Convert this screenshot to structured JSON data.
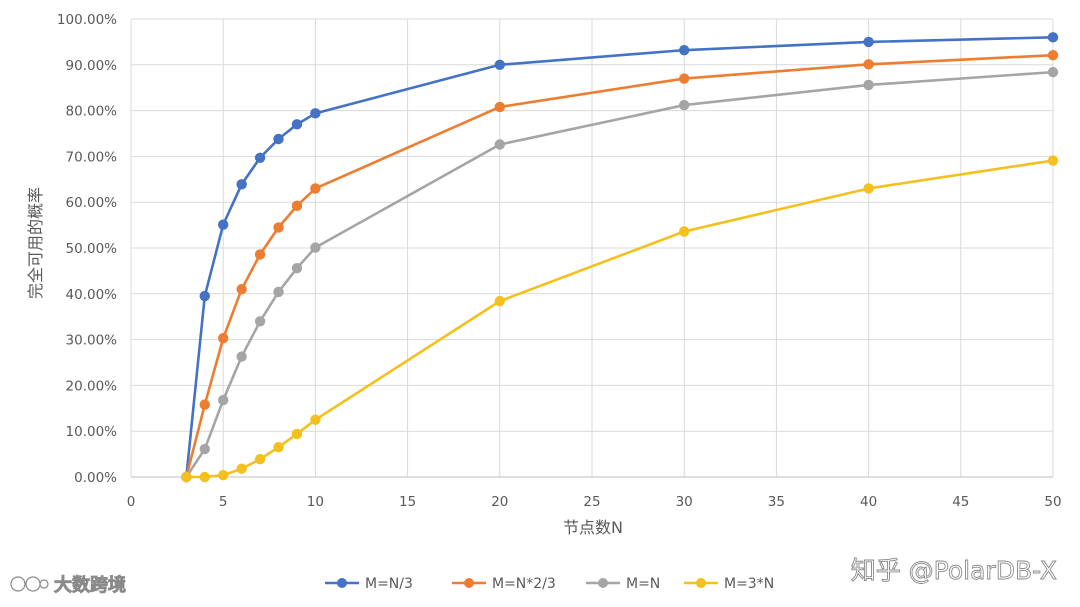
{
  "chart_data": {
    "type": "line",
    "title": "",
    "xlabel": "节点数N",
    "ylabel": "完全可用的概率",
    "xlim": [
      0,
      50
    ],
    "ylim": [
      0,
      100
    ],
    "x_ticks": [
      "0",
      "5",
      "10",
      "15",
      "20",
      "25",
      "30",
      "35",
      "40",
      "45",
      "50"
    ],
    "y_ticks": [
      "0.00%",
      "10.00%",
      "20.00%",
      "30.00%",
      "40.00%",
      "50.00%",
      "60.00%",
      "70.00%",
      "80.00%",
      "90.00%",
      "100.00%"
    ],
    "grid": true,
    "legend_position": "bottom",
    "series": [
      {
        "name": "M=N/3",
        "color": "#4472C4",
        "x": [
          3,
          4,
          5,
          6,
          7,
          8,
          9,
          10,
          20,
          30,
          40,
          50
        ],
        "y": [
          0,
          39.5,
          55.1,
          63.9,
          69.7,
          73.8,
          77.0,
          79.4,
          90.0,
          93.2,
          95.0,
          96.0
        ]
      },
      {
        "name": "M=N*2/3",
        "color": "#ED7D31",
        "x": [
          3,
          4,
          5,
          6,
          7,
          8,
          9,
          10,
          20,
          30,
          40,
          50
        ],
        "y": [
          0,
          15.8,
          30.3,
          41.0,
          48.6,
          54.5,
          59.2,
          63.0,
          80.8,
          87.0,
          90.1,
          92.1
        ]
      },
      {
        "name": "M=N",
        "color": "#A5A5A5",
        "x": [
          3,
          4,
          5,
          6,
          7,
          8,
          9,
          10,
          20,
          30,
          40,
          50
        ],
        "y": [
          0,
          6.1,
          16.8,
          26.3,
          34.0,
          40.4,
          45.6,
          50.1,
          72.6,
          81.2,
          85.6,
          88.4
        ]
      },
      {
        "name": "M=3*N",
        "color": "#F4C01E",
        "x": [
          3,
          4,
          5,
          6,
          7,
          8,
          9,
          10,
          20,
          30,
          40,
          50
        ],
        "y": [
          0,
          0.0,
          0.4,
          1.8,
          3.9,
          6.5,
          9.4,
          12.5,
          38.4,
          53.6,
          63.0,
          69.1
        ]
      }
    ]
  },
  "watermarks": {
    "bottom_right": "知乎 @PolarDB-X",
    "bottom_left": "大数跨境"
  }
}
